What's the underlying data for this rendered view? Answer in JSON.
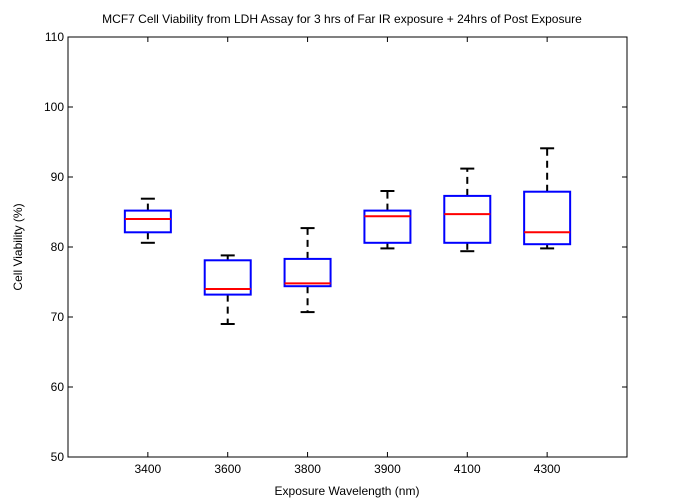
{
  "chart_data": {
    "type": "box",
    "title": "MCF7 Cell Viability from LDH Assay for 3 hrs of Far IR exposure + 24hrs of Post Exposure",
    "xlabel": "Exposure Wavelength (nm)",
    "ylabel": "Cell Viability (%)",
    "ylim": [
      50,
      110
    ],
    "yticks": [
      50,
      60,
      70,
      80,
      90,
      100,
      110
    ],
    "categories": [
      "3400",
      "3600",
      "3800",
      "3900",
      "4100",
      "4300"
    ],
    "boxes": [
      {
        "category": "3400",
        "whisker_low": 80.6,
        "q1": 82.1,
        "median": 84.0,
        "q3": 85.2,
        "whisker_high": 86.9
      },
      {
        "category": "3600",
        "whisker_low": 69.0,
        "q1": 73.2,
        "median": 74.0,
        "q3": 78.1,
        "whisker_high": 78.8
      },
      {
        "category": "3800",
        "whisker_low": 70.7,
        "q1": 74.4,
        "median": 74.8,
        "q3": 78.3,
        "whisker_high": 82.7
      },
      {
        "category": "3900",
        "whisker_low": 79.8,
        "q1": 80.6,
        "median": 84.4,
        "q3": 85.2,
        "whisker_high": 88.0
      },
      {
        "category": "4100",
        "whisker_low": 79.4,
        "q1": 80.6,
        "median": 84.7,
        "q3": 87.3,
        "whisker_high": 91.2
      },
      {
        "category": "4300",
        "whisker_low": 79.8,
        "q1": 80.4,
        "median": 82.1,
        "q3": 87.9,
        "whisker_high": 94.1
      }
    ],
    "colors": {
      "box": "#0000ff",
      "median": "#ff0000",
      "whisker": "#000000"
    },
    "grid": false
  }
}
